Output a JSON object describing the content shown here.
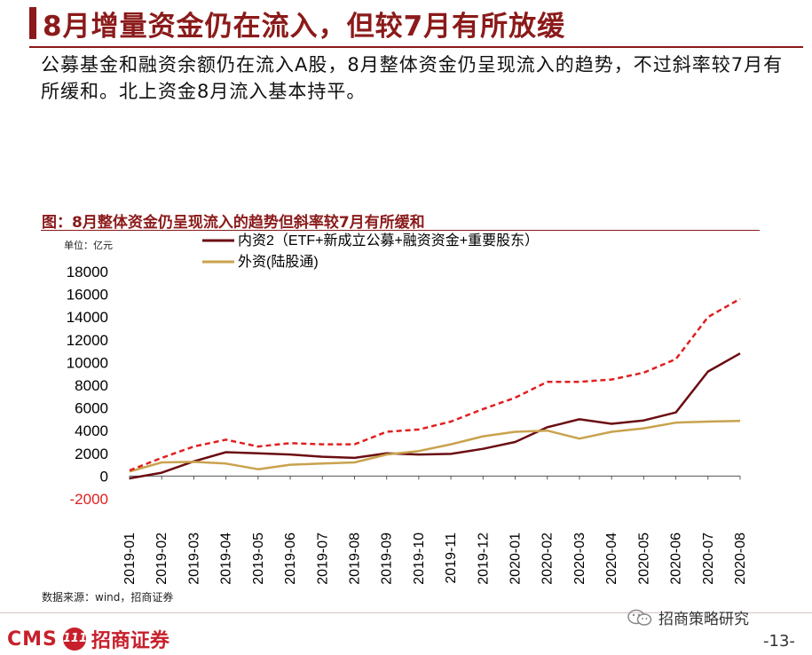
{
  "page": {
    "title": "8月增量资金仍在流入，但较7月有所放缓",
    "summary": "公募基金和融资余额仍在流入A股，8月整体资金仍呈现流入的趋势，不过斜率较7月有所缓和。北上资金8月流入基本持平。",
    "page_number": "-13-"
  },
  "chart": {
    "figure_title": "图：8月整体资金仍呈现流入的趋势但斜率较7月有所缓和",
    "unit_label": "单位：亿元",
    "source": "数据来源：wind，招商证券"
  },
  "footer": {
    "logo_cms": "CMS",
    "logo_badge": "111",
    "logo_cn": "招商证券",
    "wechat_label": "招商策略研究"
  },
  "colors": {
    "accent": "#8b1a1a",
    "series_domestic": "#6b0d12",
    "series_foreign": "#c9a24e",
    "series_dashed": "#e02020"
  },
  "chart_data": {
    "type": "line",
    "title": "8月整体资金仍呈现流入的趋势但斜率较7月有所缓和",
    "ylabel": "单位：亿元",
    "ylim": [
      -2000,
      18000
    ],
    "yticks": [
      -2000,
      0,
      2000,
      4000,
      6000,
      8000,
      10000,
      12000,
      14000,
      16000,
      18000
    ],
    "x": [
      "2019-01",
      "2019-02",
      "2019-03",
      "2019-04",
      "2019-05",
      "2019-06",
      "2019-07",
      "2019-08",
      "2019-09",
      "2019-10",
      "2019-11",
      "2019-12",
      "2020-01",
      "2020-02",
      "2020-03",
      "2020-04",
      "2020-05",
      "2020-06",
      "2020-07",
      "2020-08"
    ],
    "legend_position": "top",
    "series": [
      {
        "name": "内资2（ETF+新成立公募+融资资金+重要股东）",
        "style": "solid",
        "values": [
          -200,
          300,
          1300,
          2100,
          2000,
          1900,
          1700,
          1600,
          2000,
          1900,
          1950,
          2400,
          3000,
          4300,
          5000,
          4600,
          4900,
          5600,
          9200,
          10800
        ]
      },
      {
        "name": "外资(陆股通)",
        "style": "solid",
        "values": [
          400,
          1200,
          1250,
          1100,
          600,
          1000,
          1100,
          1200,
          1900,
          2200,
          2800,
          3500,
          3900,
          4000,
          3300,
          3900,
          4200,
          4700,
          4800,
          4850
        ]
      },
      {
        "name": "",
        "style": "dashed",
        "values": [
          500,
          1600,
          2600,
          3200,
          2600,
          2900,
          2800,
          2800,
          3900,
          4100,
          4800,
          5900,
          6900,
          8300,
          8300,
          8500,
          9100,
          10300,
          14000,
          15600
        ]
      }
    ]
  }
}
